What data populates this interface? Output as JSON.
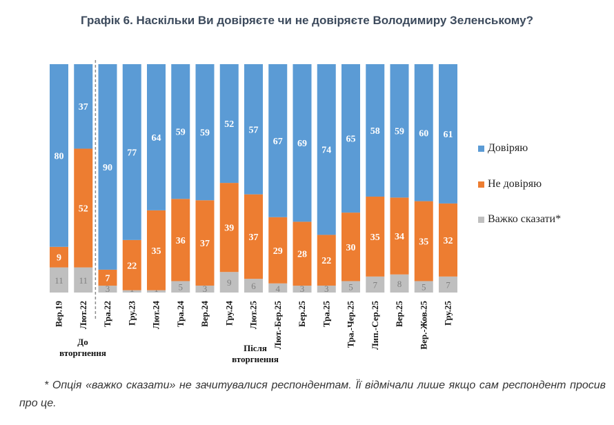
{
  "chart_data": {
    "type": "bar",
    "stacked": true,
    "title": "Графік 6. Наскільки Ви довіряєте чи не довіряєте Володимиру Зеленському?",
    "categories": [
      "Вер.19",
      "Лют.22",
      "Тра.22",
      "Гру.23",
      "Лют.24",
      "Тра.24",
      "Вер.24",
      "Гру.24",
      "Лют.25",
      "Лют.-Бер.25",
      "Бер.25",
      "Тра.25",
      "Тра.-Чер.25",
      "Лип.-Сер.25",
      "Вер.25",
      "Вер.-Жов.25",
      "Гру.25"
    ],
    "series": [
      {
        "name": "Важко сказати*",
        "color": "#bfbfbf",
        "values": [
          11,
          11,
          3,
          1,
          1,
          5,
          3,
          9,
          6,
          4,
          3,
          3,
          5,
          7,
          8,
          5,
          7
        ]
      },
      {
        "name": "Не довіряю",
        "color": "#ed7d31",
        "values": [
          9,
          52,
          7,
          22,
          35,
          36,
          37,
          39,
          37,
          29,
          28,
          22,
          30,
          35,
          34,
          35,
          32
        ]
      },
      {
        "name": "Довіряю",
        "color": "#5b9bd5",
        "values": [
          80,
          37,
          90,
          77,
          64,
          59,
          59,
          52,
          57,
          67,
          69,
          74,
          65,
          58,
          59,
          60,
          61
        ]
      }
    ],
    "legend": [
      "Довіряю",
      "Не довіряю",
      "Важко сказати*"
    ],
    "ylim": [
      0,
      100
    ],
    "era_labels": [
      "До вторгнення",
      "Після вторгнення"
    ]
  },
  "footnote": "* Опція «важко сказати» не зачитувалися респондентам. Її відмічали лише якщо сам респондент просив про це."
}
